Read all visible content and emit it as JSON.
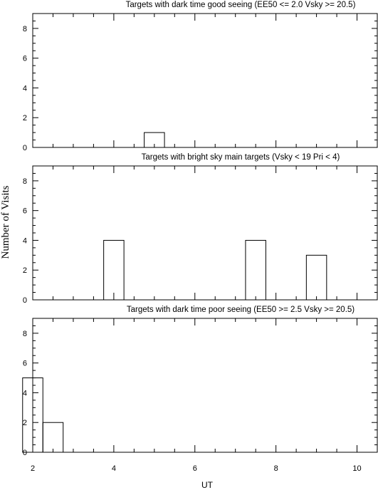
{
  "figure": {
    "ylabel": "Number of Visits",
    "xlabel": "UT"
  },
  "chart_data": [
    {
      "type": "bar",
      "title": "Targets with dark time good seeing (EE50 <= 2.0 Vsky >= 20.5)",
      "xlim": [
        2,
        10.5
      ],
      "ylim": [
        0,
        9
      ],
      "x_ticks": [
        2,
        4,
        6,
        8,
        10
      ],
      "y_ticks": [
        0,
        2,
        4,
        6,
        8
      ],
      "y_tick_labels": [
        "0",
        "2",
        "4",
        "6",
        "8"
      ],
      "bin_width": 0.5,
      "bins": [
        {
          "x": 5.0,
          "value": 1
        }
      ]
    },
    {
      "type": "bar",
      "title": "Targets with bright sky main targets (Vsky < 19 Pri < 4)",
      "xlim": [
        2,
        10.5
      ],
      "ylim": [
        0,
        9
      ],
      "x_ticks": [
        2,
        4,
        6,
        8,
        10
      ],
      "y_ticks": [
        0,
        2,
        4,
        6,
        8
      ],
      "y_tick_labels": [
        "0",
        "2",
        "4",
        "6",
        "8"
      ],
      "bin_width": 0.5,
      "bins": [
        {
          "x": 4.0,
          "value": 4
        },
        {
          "x": 7.5,
          "value": 4
        },
        {
          "x": 9.0,
          "value": 3
        }
      ]
    },
    {
      "type": "bar",
      "title": "Targets with dark time poor seeing (EE50 >= 2.5 Vsky >= 20.5)",
      "xlim": [
        2,
        10.5
      ],
      "ylim": [
        0,
        9
      ],
      "x_ticks": [
        2,
        4,
        6,
        8,
        10
      ],
      "x_tick_labels": [
        "2",
        "4",
        "6",
        "8",
        "10"
      ],
      "y_ticks": [
        0,
        2,
        4,
        6,
        8
      ],
      "y_tick_labels": [
        "0",
        "2",
        "4",
        "6",
        "8"
      ],
      "bin_width": 0.5,
      "bins": [
        {
          "x": 2.0,
          "value": 5
        },
        {
          "x": 2.5,
          "value": 2
        }
      ]
    }
  ]
}
